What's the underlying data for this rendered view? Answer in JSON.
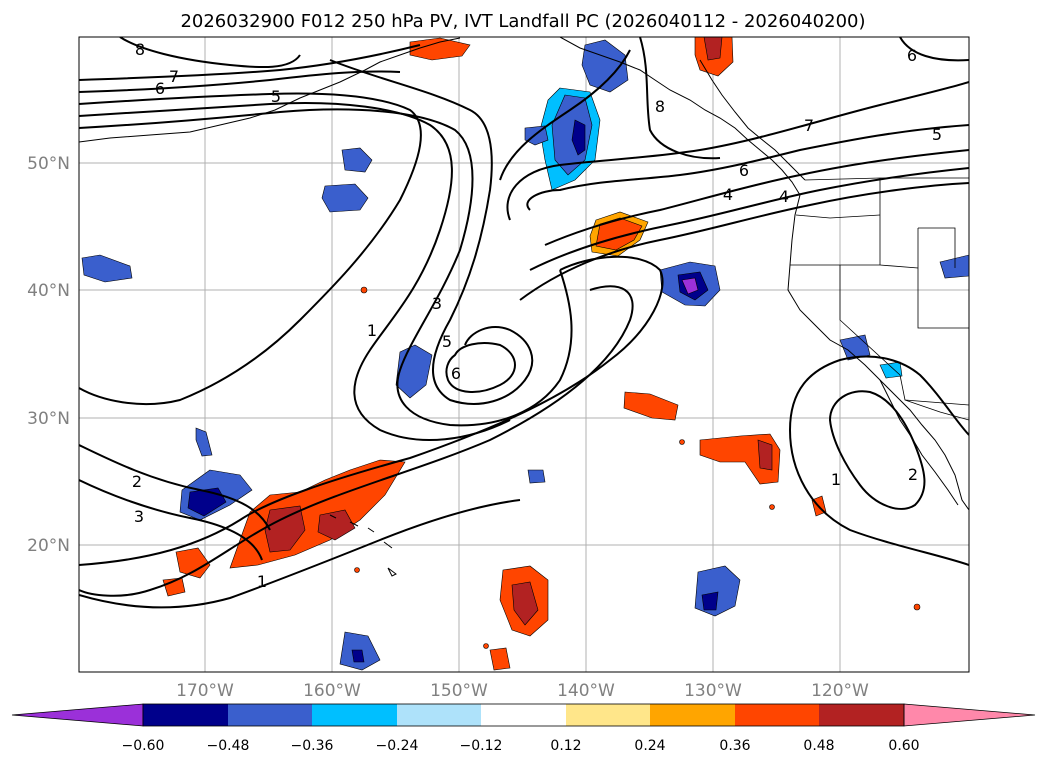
{
  "title": "2026032900 F012 250 hPa PV, IVT Landfall PC (2026040112 - 2026040200)",
  "lat_labels": [
    "50°N",
    "40°N",
    "30°N",
    "20°N"
  ],
  "lon_labels": [
    "170°W",
    "160°W",
    "150°W",
    "140°W",
    "130°W",
    "120°W"
  ],
  "colorbar": {
    "ticks": [
      "−0.60",
      "−0.48",
      "−0.36",
      "−0.24",
      "−0.12",
      "0.12",
      "0.24",
      "0.36",
      "0.48",
      "0.60"
    ],
    "colors": [
      "#9b30d9",
      "#00008b",
      "#3a5fcd",
      "#00bfff",
      "#aee2fa",
      "#ffffff",
      "#ffe68a",
      "#ffa500",
      "#ff4500",
      "#b22222",
      "#ff88aa"
    ]
  },
  "colors": {
    "neg_strong": "#00008b",
    "neg_mid": "#3a5fcd",
    "neg_weak": "#00bfff",
    "neg_extreme": "#9b30d9",
    "pos_weak": "#ffa500",
    "pos_mid": "#ff4500",
    "pos_strong": "#b22222",
    "pos_extreme": "#ff88aa"
  },
  "contour_labels": [
    "8",
    "7",
    "6",
    "5",
    "1",
    "3",
    "5",
    "6",
    "8",
    "7",
    "6",
    "4",
    "4",
    "5",
    "6",
    "2",
    "3",
    "1",
    "1",
    "2"
  ]
}
